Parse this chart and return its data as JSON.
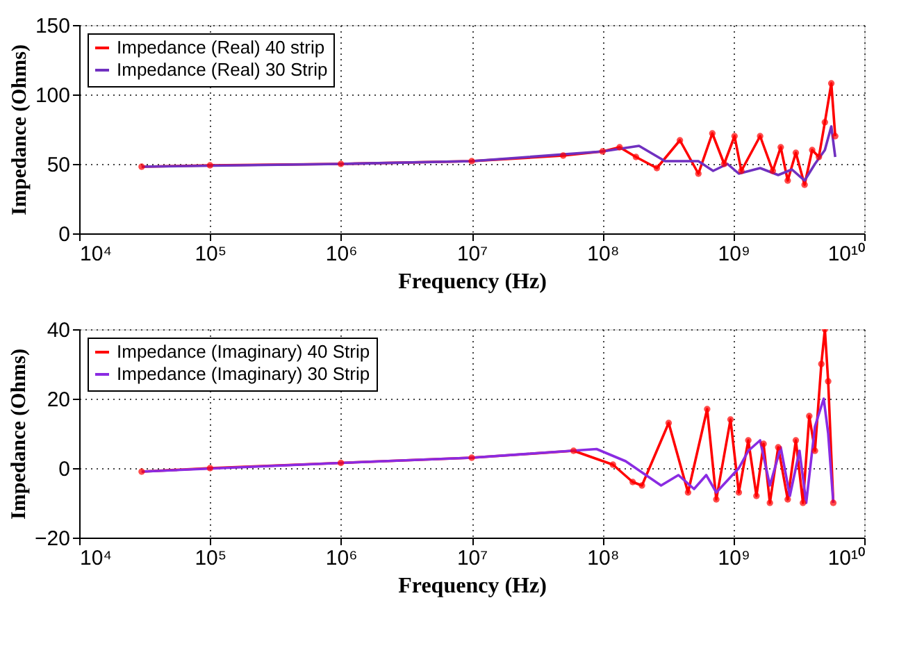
{
  "chart_data": [
    {
      "type": "line",
      "xlabel": "Frequency (Hz)",
      "ylabel": "Impedance (Ohms)",
      "log": "x",
      "grid": true,
      "legend": "top left",
      "xlim": [
        10000,
        10000000000
      ],
      "xticks": [
        {
          "value": 10000,
          "label": "10⁴"
        },
        {
          "value": 100000,
          "label": "10⁵"
        },
        {
          "value": 1000000,
          "label": "10⁶"
        },
        {
          "value": 10000000,
          "label": "10⁷"
        },
        {
          "value": 100000000,
          "label": "10⁸"
        },
        {
          "value": 1000000000,
          "label": "10⁹"
        },
        {
          "value": 10000000000,
          "label": "10¹⁰"
        }
      ],
      "ylim": [
        0,
        150
      ],
      "yticks": [
        0,
        50,
        100,
        150
      ],
      "series": [
        {
          "name": "Impedance (Real) 40 strip",
          "color": "#ff0000",
          "marker": "circle",
          "x": [
            30000.0,
            100000.0,
            1000000.0,
            10000000.0,
            50000000.0,
            100000000.0,
            135000000.0,
            180000000.0,
            260000000.0,
            390000000.0,
            540000000.0,
            690000000.0,
            850000000.0,
            1020000000.0,
            1150000000.0,
            1600000000.0,
            2000000000.0,
            2300000000.0,
            2600000000.0,
            3000000000.0,
            3500000000.0,
            4000000000.0,
            4500000000.0,
            5000000000.0,
            5600000000.0,
            6000000000.0
          ],
          "values": [
            48,
            49,
            50,
            52,
            56,
            59,
            62,
            55,
            47,
            67,
            43,
            72,
            50,
            70,
            45,
            70,
            45,
            62,
            38,
            58,
            35,
            60,
            55,
            80,
            108,
            70
          ]
        },
        {
          "name": "Impedance (Real) 30 Strip",
          "color": "#7030c0",
          "marker": "none",
          "x": [
            30000.0,
            1000000.0,
            10000000.0,
            100000000.0,
            190000000.0,
            300000000.0,
            540000000.0,
            700000000.0,
            900000000.0,
            1100000000.0,
            1600000000.0,
            2200000000.0,
            2800000000.0,
            3500000000.0,
            4200000000.0,
            5000000000.0,
            5600000000.0,
            6000000000.0
          ],
          "values": [
            48,
            50,
            52,
            59,
            63,
            52,
            52,
            45,
            50,
            43,
            47,
            42,
            46,
            38,
            50,
            60,
            77,
            55
          ]
        }
      ]
    },
    {
      "type": "line",
      "xlabel": "Frequency (Hz)",
      "ylabel": "Impedance (Ohms)",
      "log": "x",
      "grid": true,
      "legend": "top left",
      "xlim": [
        10000,
        10000000000
      ],
      "xticks": [
        {
          "value": 10000,
          "label": "10⁴"
        },
        {
          "value": 100000,
          "label": "10⁵"
        },
        {
          "value": 1000000,
          "label": "10⁶"
        },
        {
          "value": 10000000,
          "label": "10⁷"
        },
        {
          "value": 100000000,
          "label": "10⁸"
        },
        {
          "value": 1000000000,
          "label": "10⁹"
        },
        {
          "value": 10000000000,
          "label": "10¹⁰"
        }
      ],
      "ylim": [
        -20,
        40
      ],
      "yticks": [
        -20,
        0,
        20,
        40
      ],
      "series": [
        {
          "name": "Impedance (Imaginary) 40 Strip",
          "color": "#ff0000",
          "marker": "circle",
          "x": [
            30000.0,
            100000.0,
            1000000.0,
            10000000.0,
            60000000.0,
            120000000.0,
            170000000.0,
            200000000.0,
            320000000.0,
            450000000.0,
            630000000.0,
            740000000.0,
            950000000.0,
            1100000000.0,
            1300000000.0,
            1500000000.0,
            1700000000.0,
            1900000000.0,
            2200000000.0,
            2600000000.0,
            3000000000.0,
            3400000000.0,
            3800000000.0,
            4200000000.0,
            4700000000.0,
            5000000000.0,
            5300000000.0,
            5800000000.0
          ],
          "values": [
            -1,
            0,
            1.5,
            3,
            5,
            1,
            -4,
            -5,
            13,
            -7,
            17,
            -9,
            14,
            -7,
            8,
            -8,
            7,
            -10,
            6,
            -9,
            8,
            -10,
            15,
            5,
            30,
            40,
            25,
            -10
          ]
        },
        {
          "name": "Impedance (Imaginary) 30 Strip",
          "color": "#8a2be2",
          "marker": "none",
          "x": [
            30000.0,
            1000000.0,
            10000000.0,
            90000000.0,
            150000000.0,
            280000000.0,
            380000000.0,
            500000000.0,
            620000000.0,
            740000000.0,
            1100000000.0,
            1300000000.0,
            1600000000.0,
            1900000000.0,
            2300000000.0,
            2700000000.0,
            3200000000.0,
            3600000000.0,
            4200000000.0,
            4900000000.0,
            5300000000.0,
            5800000000.0
          ],
          "values": [
            -1,
            1.5,
            3,
            5.5,
            2,
            -5,
            -2,
            -6,
            -2,
            -7,
            0,
            5,
            8,
            -5,
            6,
            -8,
            5,
            -10,
            12,
            20,
            10,
            -10
          ]
        }
      ]
    }
  ]
}
